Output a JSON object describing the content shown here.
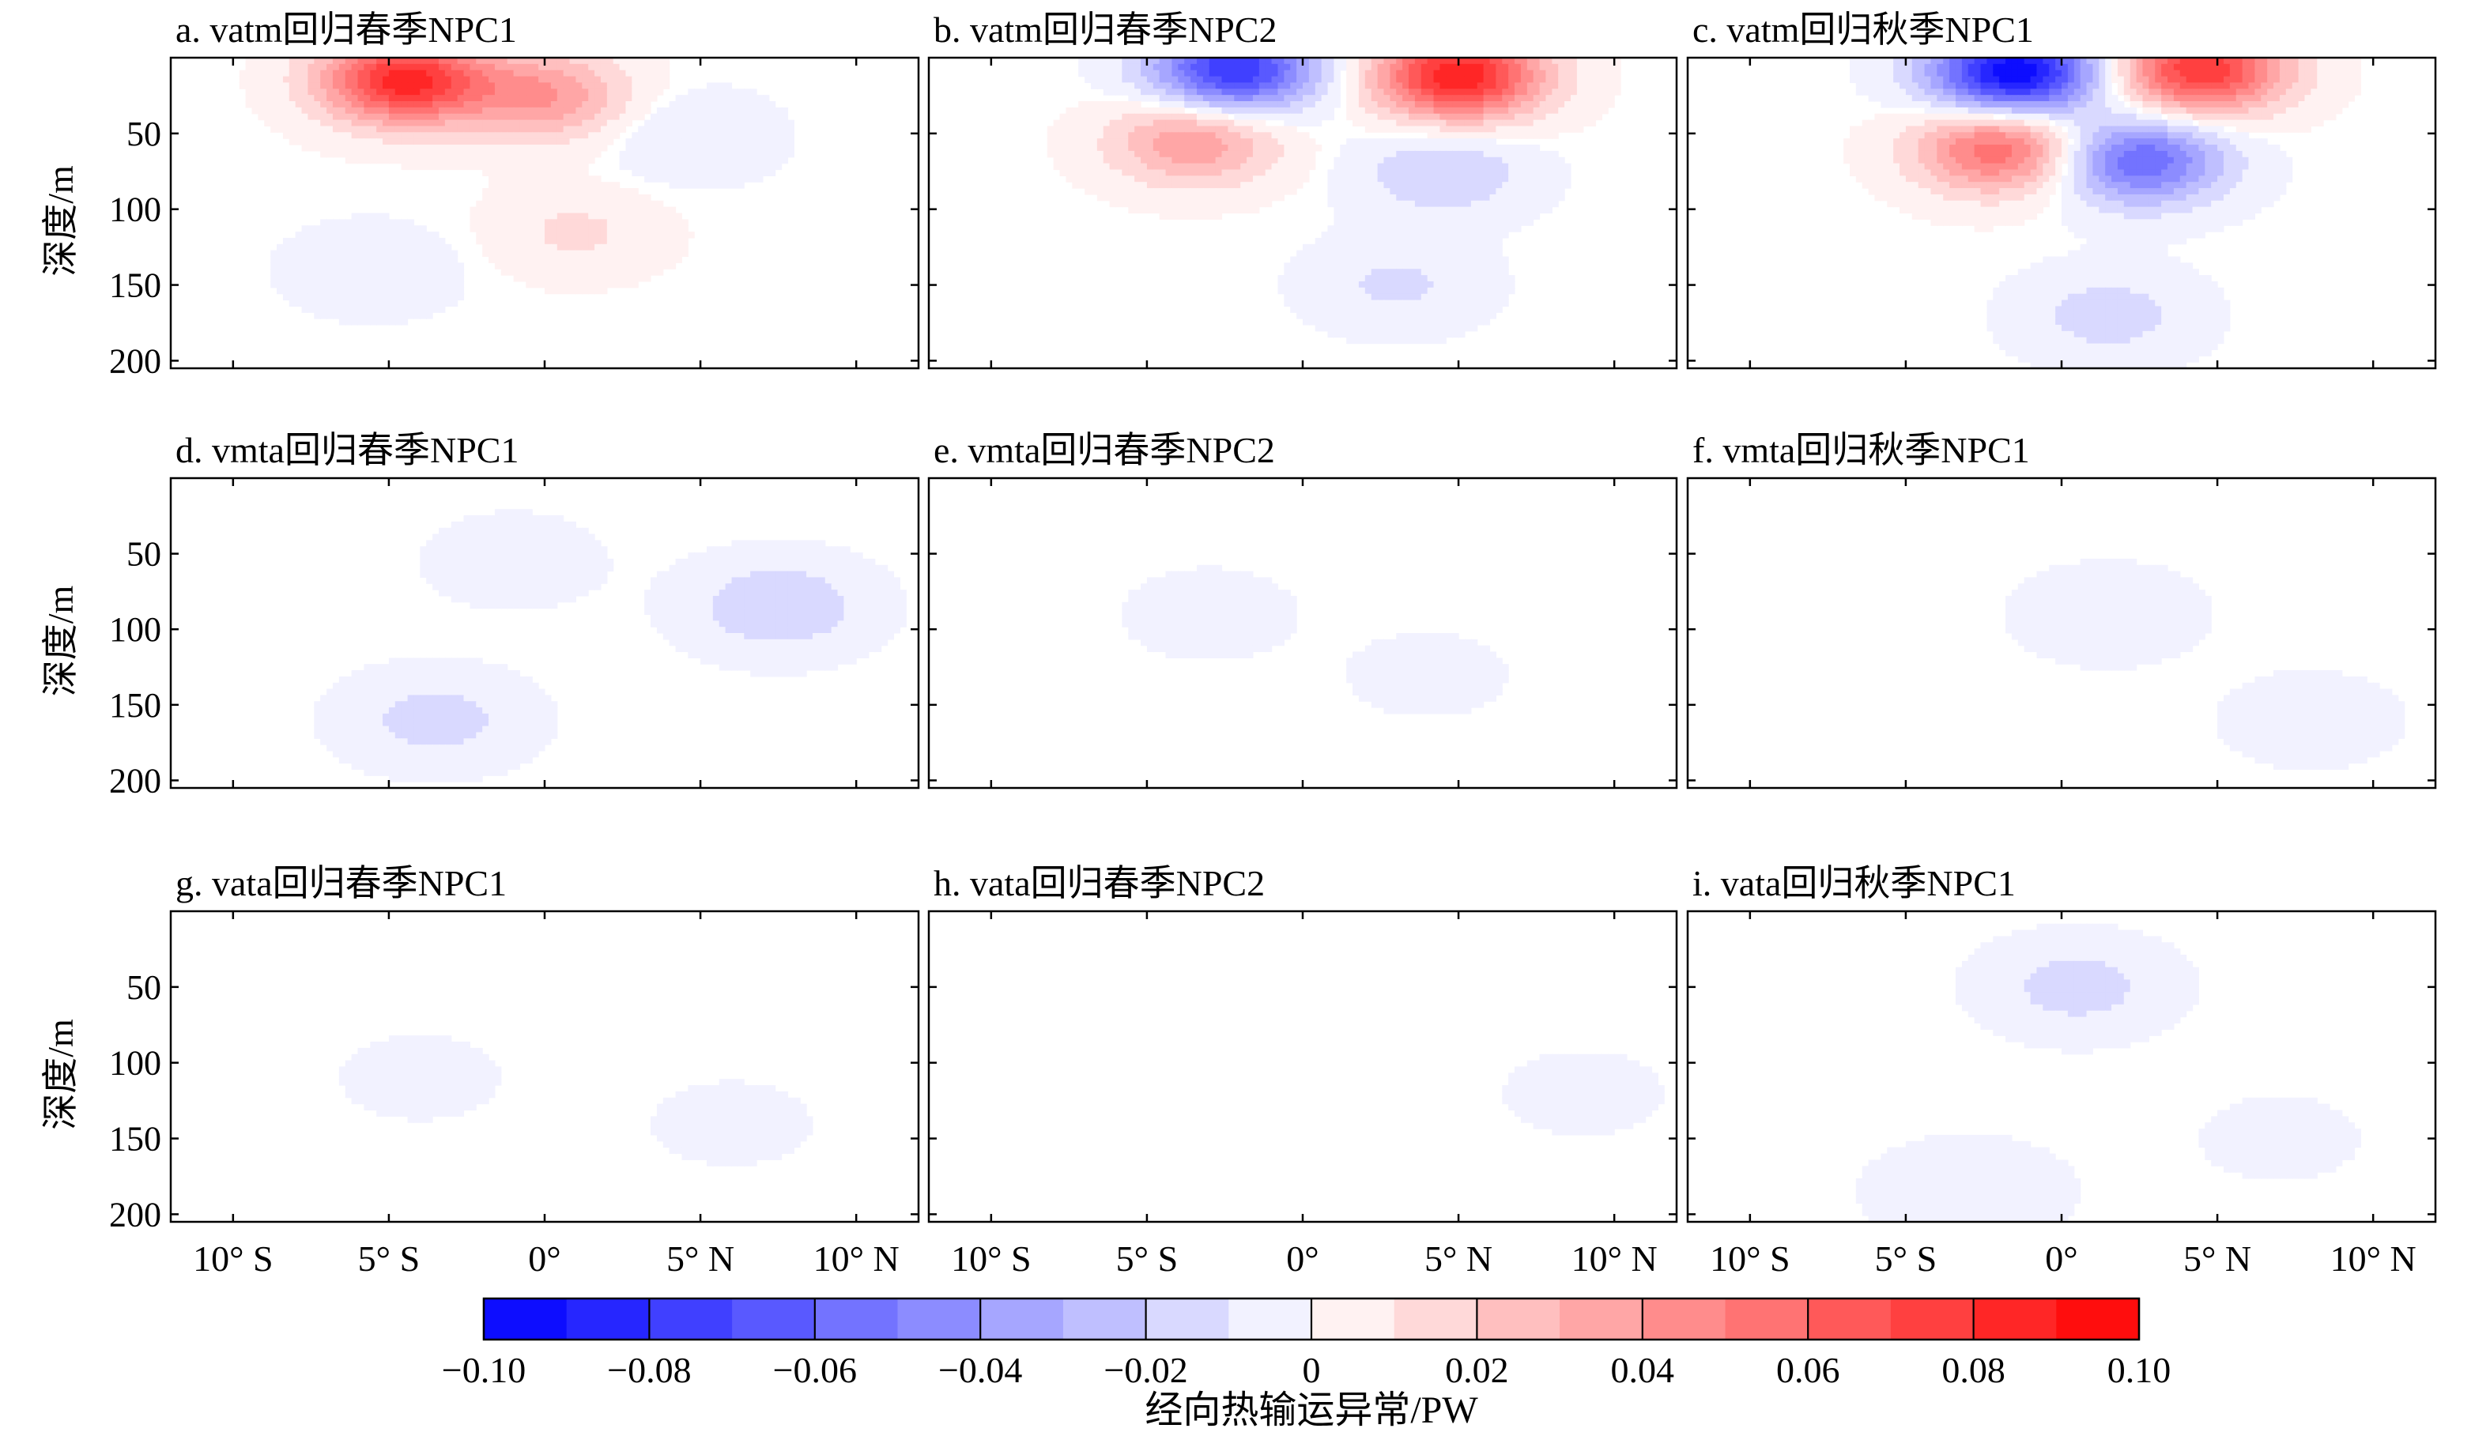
{
  "chart_data": {
    "type": "heatmap",
    "panels": [
      {
        "label": "a. vatm回归春季NPC1",
        "field": "vatm",
        "season": "春季",
        "mode": "NPC1",
        "pattern": "a"
      },
      {
        "label": "b. vatm回归春季NPC2",
        "field": "vatm",
        "season": "春季",
        "mode": "NPC2",
        "pattern": "b"
      },
      {
        "label": "c. vatm回归秋季NPC1",
        "field": "vatm",
        "season": "秋季",
        "mode": "NPC1",
        "pattern": "c"
      },
      {
        "label": "d. vmta回归春季NPC1",
        "field": "vmta",
        "season": "春季",
        "mode": "NPC1",
        "pattern": "d"
      },
      {
        "label": "e. vmta回归春季NPC2",
        "field": "vmta",
        "season": "春季",
        "mode": "NPC2",
        "pattern": "e"
      },
      {
        "label": "f. vmta回归秋季NPC1",
        "field": "vmta",
        "season": "秋季",
        "mode": "NPC1",
        "pattern": "f"
      },
      {
        "label": "g. vata回归春季NPC1",
        "field": "vata",
        "season": "春季",
        "mode": "NPC1",
        "pattern": "g"
      },
      {
        "label": "h. vata回归春季NPC2",
        "field": "vata",
        "season": "春季",
        "mode": "NPC2",
        "pattern": "h"
      },
      {
        "label": "i. vata回归秋季NPC1",
        "field": "vata",
        "season": "秋季",
        "mode": "NPC1",
        "pattern": "i"
      }
    ],
    "ylabel": "深度/m",
    "ylim": [
      0,
      205
    ],
    "yticks": [
      50,
      100,
      150,
      200
    ],
    "ytick_labels": [
      "50",
      "100",
      "150",
      "200"
    ],
    "xlim": [
      -14,
      10
    ],
    "xticks": [
      -12,
      -7,
      -2,
      3,
      8
    ],
    "xtick_labels": [
      "10° S",
      "5° S",
      "0°",
      "5° N",
      "10° N"
    ],
    "colorbar": {
      "label": "经向热输运异常/PW",
      "range": [
        -0.1,
        0.1
      ],
      "ticks": [
        -0.1,
        -0.08,
        -0.06,
        -0.04,
        -0.02,
        0,
        0.02,
        0.04,
        0.06,
        0.08,
        0.1
      ],
      "tick_labels": [
        "−0.10",
        "−0.08",
        "−0.06",
        "−0.04",
        "−0.02",
        "0",
        "0.02",
        "0.04",
        "0.06",
        "0.08",
        "0.10"
      ],
      "levels": 20,
      "low_color": "#0000ff",
      "mid_color": "#ffffff",
      "high_color": "#ff0000"
    },
    "anomaly_centers": {
      "a": [
        {
          "x": -6.5,
          "y": 15,
          "value": 0.085
        },
        {
          "x": -2.0,
          "y": 25,
          "value": 0.04
        },
        {
          "x": -1.0,
          "y": 115,
          "value": 0.012
        },
        {
          "x": 2.5,
          "y": 52,
          "value": -0.01
        },
        {
          "x": -7.5,
          "y": 140,
          "value": -0.008
        }
      ],
      "b": [
        {
          "x": -4.2,
          "y": 8,
          "value": -0.08
        },
        {
          "x": 3.0,
          "y": 12,
          "value": 0.09
        },
        {
          "x": -5.5,
          "y": 55,
          "value": 0.04
        },
        {
          "x": 2.5,
          "y": 75,
          "value": -0.02
        },
        {
          "x": 1.0,
          "y": 150,
          "value": -0.012
        }
      ],
      "c": [
        {
          "x": -3.5,
          "y": 10,
          "value": -0.1
        },
        {
          "x": 2.5,
          "y": 8,
          "value": 0.08
        },
        {
          "x": -4.0,
          "y": 60,
          "value": 0.06
        },
        {
          "x": 0.5,
          "y": 68,
          "value": -0.06
        },
        {
          "x": -0.5,
          "y": 170,
          "value": -0.015
        }
      ],
      "d": [
        {
          "x": 5.5,
          "y": 85,
          "value": -0.02
        },
        {
          "x": -5.5,
          "y": 160,
          "value": -0.015
        },
        {
          "x": -3.0,
          "y": 55,
          "value": -0.006
        }
      ],
      "e": [
        {
          "x": -5.0,
          "y": 90,
          "value": -0.005
        },
        {
          "x": 2.0,
          "y": 130,
          "value": -0.004
        }
      ],
      "f": [
        {
          "x": -0.5,
          "y": 90,
          "value": -0.008
        },
        {
          "x": 6.0,
          "y": 160,
          "value": -0.006
        }
      ],
      "g": [
        {
          "x": -6.0,
          "y": 110,
          "value": -0.004
        },
        {
          "x": 4.0,
          "y": 140,
          "value": -0.004
        }
      ],
      "h": [
        {
          "x": 7.0,
          "y": 120,
          "value": -0.004
        }
      ],
      "i": [
        {
          "x": -1.5,
          "y": 50,
          "value": -0.015
        },
        {
          "x": -5.0,
          "y": 185,
          "value": -0.01
        },
        {
          "x": 5.0,
          "y": 150,
          "value": -0.004
        }
      ]
    }
  }
}
